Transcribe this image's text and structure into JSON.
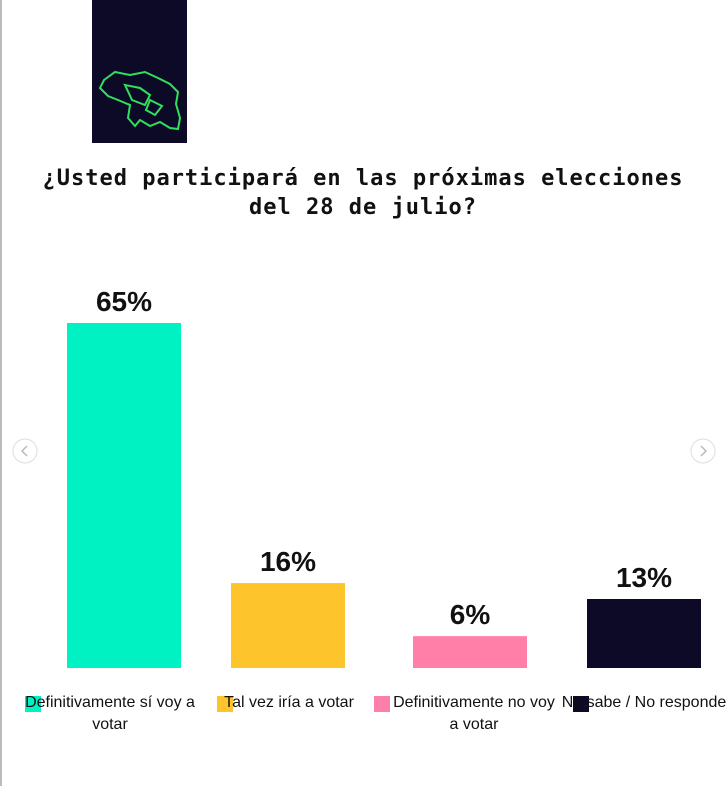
{
  "chart_data": {
    "type": "bar",
    "title": "¿Usted participará en las próximas elecciones del 28 de julio?",
    "categories": [
      "Definitivamente sí voy a votar",
      "Tal vez iría a votar",
      "Definitivamente no voy a votar",
      "No sabe / No responde"
    ],
    "values": [
      65,
      16,
      6,
      13
    ],
    "value_labels": [
      "65%",
      "16%",
      "6%",
      "13%"
    ],
    "colors": [
      "#00f2c3",
      "#fdc52b",
      "#ff7fa9",
      "#0d0a28"
    ]
  }
}
